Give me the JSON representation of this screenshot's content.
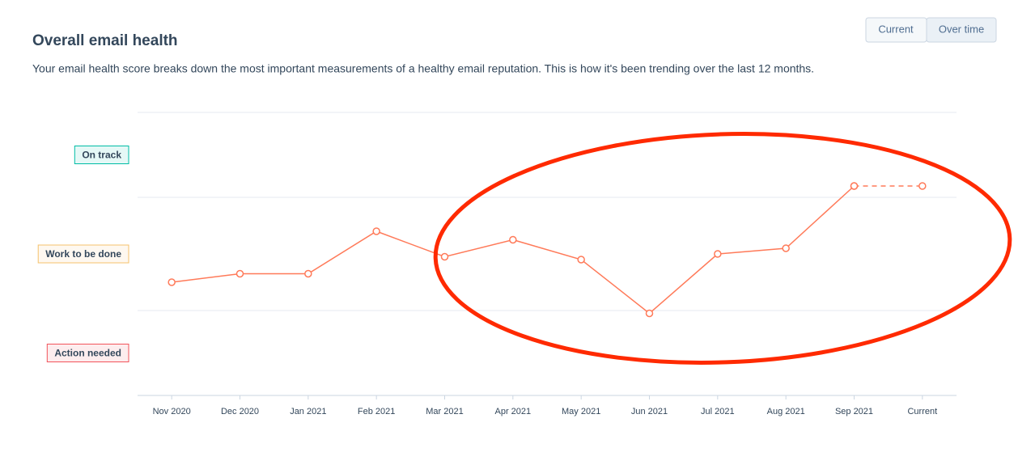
{
  "header": {
    "title": "Overall email health",
    "description": "Your email health score breaks down the most important measurements of a healthy email reputation. This is how it's been trending over the last 12 months."
  },
  "toggle": {
    "options": [
      "Current",
      "Over time"
    ],
    "selected": 1
  },
  "chart_data": {
    "type": "line",
    "categories": [
      "Nov 2020",
      "Dec 2020",
      "Jan 2021",
      "Feb 2021",
      "Mar 2021",
      "Apr 2021",
      "May 2021",
      "Jun 2021",
      "Jul 2021",
      "Aug 2021",
      "Sep 2021",
      "Current"
    ],
    "series": [
      {
        "color": "#ff7a59",
        "values": [
          40,
          43,
          43,
          58,
          49,
          55,
          48,
          29,
          50,
          52,
          74,
          null
        ]
      },
      {
        "color": "#ff7a59",
        "dashed": true,
        "values": [
          null,
          null,
          null,
          null,
          null,
          null,
          null,
          null,
          null,
          null,
          74,
          74
        ]
      }
    ],
    "ylim": [
      0,
      100
    ],
    "yticks": [
      0,
      30,
      70,
      100
    ],
    "grid": true,
    "bands": [
      {
        "label": "On track",
        "range": [
          70,
          100
        ],
        "color": "#00bda5",
        "fill": "#e5f8f6"
      },
      {
        "label": "Work to be done",
        "range": [
          30,
          70
        ],
        "color": "#f5c26b",
        "fill": "#fef8f0"
      },
      {
        "label": "Action needed",
        "range": [
          0,
          30
        ],
        "color": "#f2545b",
        "fill": "#fdedee"
      }
    ]
  }
}
